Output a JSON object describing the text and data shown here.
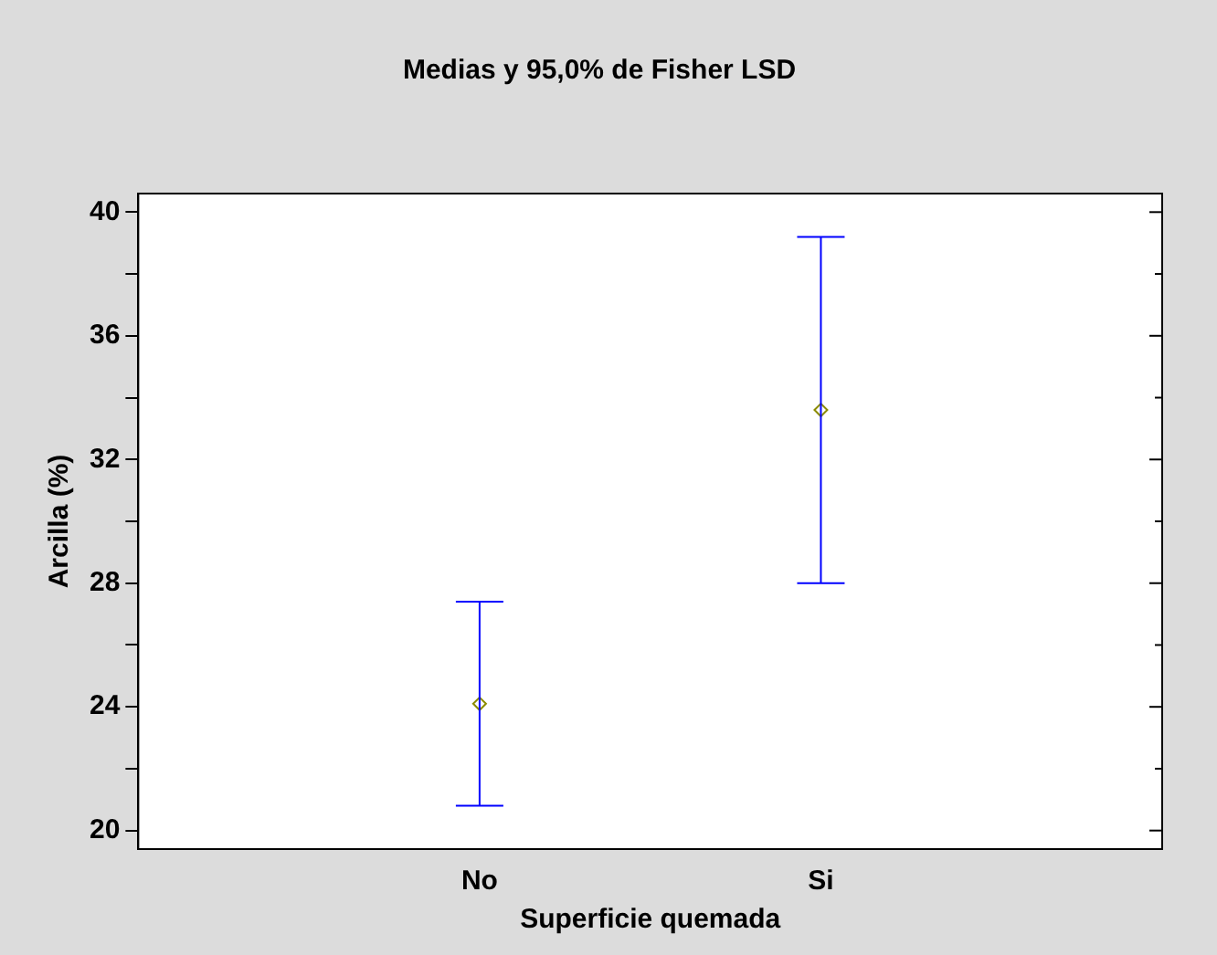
{
  "chart_data": {
    "type": "scatter",
    "title": "Medias y 95,0% de Fisher LSD",
    "xlabel": "Superficie quemada",
    "ylabel": "Arcilla (%)",
    "categories": [
      "No",
      "Si"
    ],
    "series": [
      {
        "color": "#8b8b00",
        "values": [
          24.1,
          33.6
        ],
        "errors": [
          [
            20.8,
            27.4
          ],
          [
            28.0,
            39.2
          ]
        ]
      }
    ],
    "ylim": [
      19.4,
      40.6
    ],
    "yticks": [
      20,
      {
        "value": 22,
        "label": null
      },
      24,
      {
        "value": 26,
        "label": null
      },
      28,
      {
        "value": 30,
        "label": null
      },
      32,
      {
        "value": 34,
        "label": null
      },
      36,
      {
        "value": 38,
        "label": null
      },
      40
    ],
    "marker": "diamond",
    "grid": false,
    "legend": false
  }
}
